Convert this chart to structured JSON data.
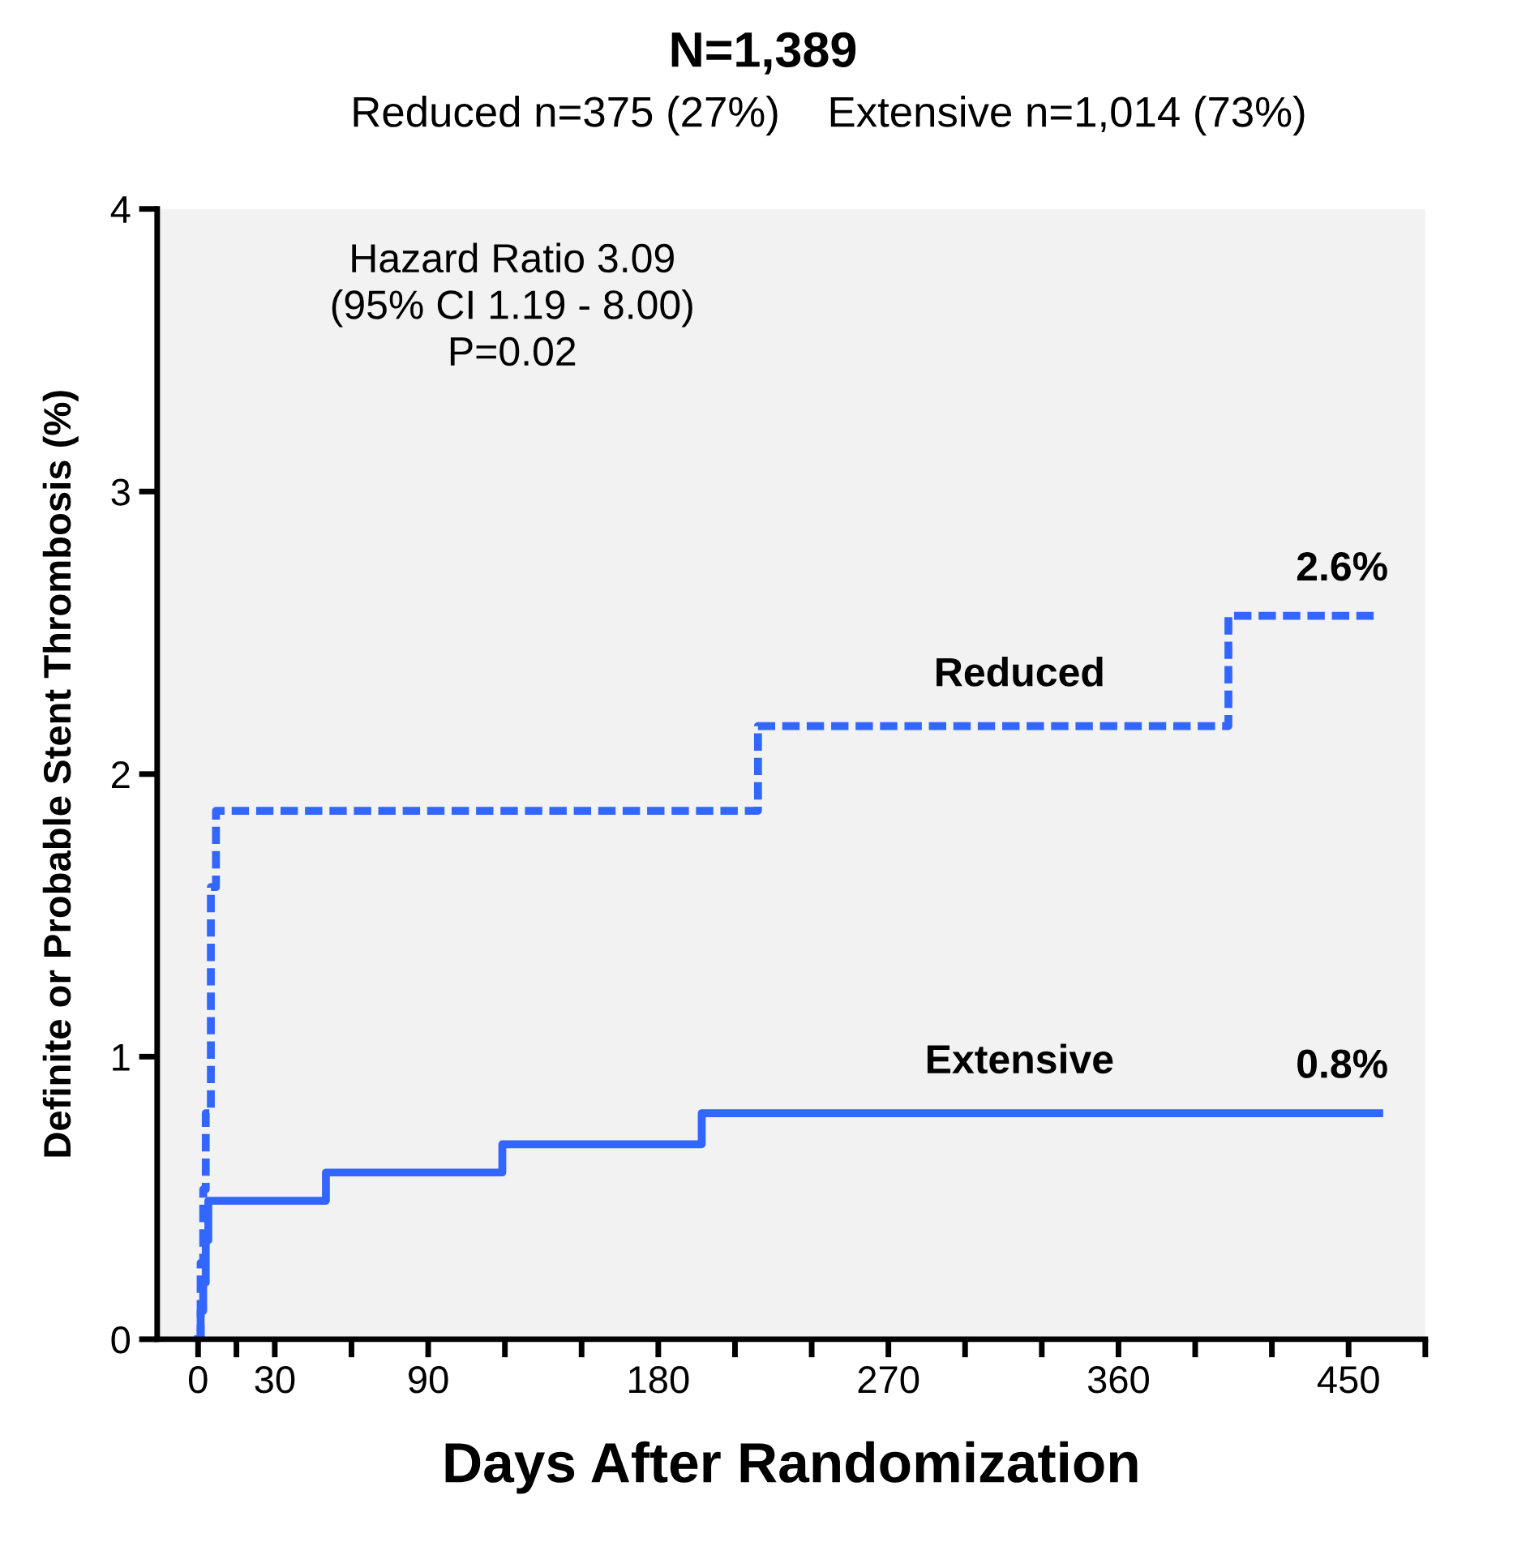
{
  "chart_data": {
    "type": "step",
    "title": "N=1,389",
    "subtitle": "Reduced n=375 (27%)    Extensive n=1,014 (73%)",
    "xlabel": "Days After Randomization",
    "ylabel": "Definite or Probable Stent Thrombosis (%)",
    "series": [
      {
        "name": "Reduced",
        "color": "#3366ff",
        "line_style": "dashed",
        "x": [
          0,
          1,
          2,
          3,
          5,
          7,
          219,
          403,
          462
        ],
        "values": [
          0,
          0.27,
          0.53,
          0.8,
          1.6,
          1.87,
          2.17,
          2.56,
          2.56
        ]
      },
      {
        "name": "Extensive",
        "color": "#3366ff",
        "line_style": "solid",
        "x": [
          0,
          1,
          2,
          3,
          4,
          50,
          119,
          197,
          462
        ],
        "values": [
          0,
          0.1,
          0.2,
          0.35,
          0.49,
          0.59,
          0.69,
          0.8,
          0.8
        ]
      }
    ],
    "xlim": [
      -16,
      480
    ],
    "xticks": [
      0,
      {
        "value": 15,
        "label": null
      },
      30,
      {
        "value": 60,
        "label": null
      },
      90,
      {
        "value": 120,
        "label": null
      },
      {
        "value": 150,
        "label": null
      },
      180,
      {
        "value": 210,
        "label": null
      },
      {
        "value": 240,
        "label": null
      },
      270,
      {
        "value": 300,
        "label": null
      },
      {
        "value": 330,
        "label": null
      },
      360,
      {
        "value": 390,
        "label": null
      },
      {
        "value": 420,
        "label": null
      },
      450,
      {
        "value": 480,
        "label": null
      }
    ],
    "ylim": [
      0,
      4
    ],
    "yticks": [
      0,
      1,
      2,
      3,
      4
    ],
    "annotations": [
      "Hazard Ratio 3.09\n(95% CI 1.19 - 8.00)\nP=0.02",
      {
        "text": "2.6%",
        "x": 462,
        "y": 2.56
      },
      {
        "text": "0.8%",
        "x": 462,
        "y": 0.8
      }
    ],
    "grid": false,
    "legend": false
  }
}
